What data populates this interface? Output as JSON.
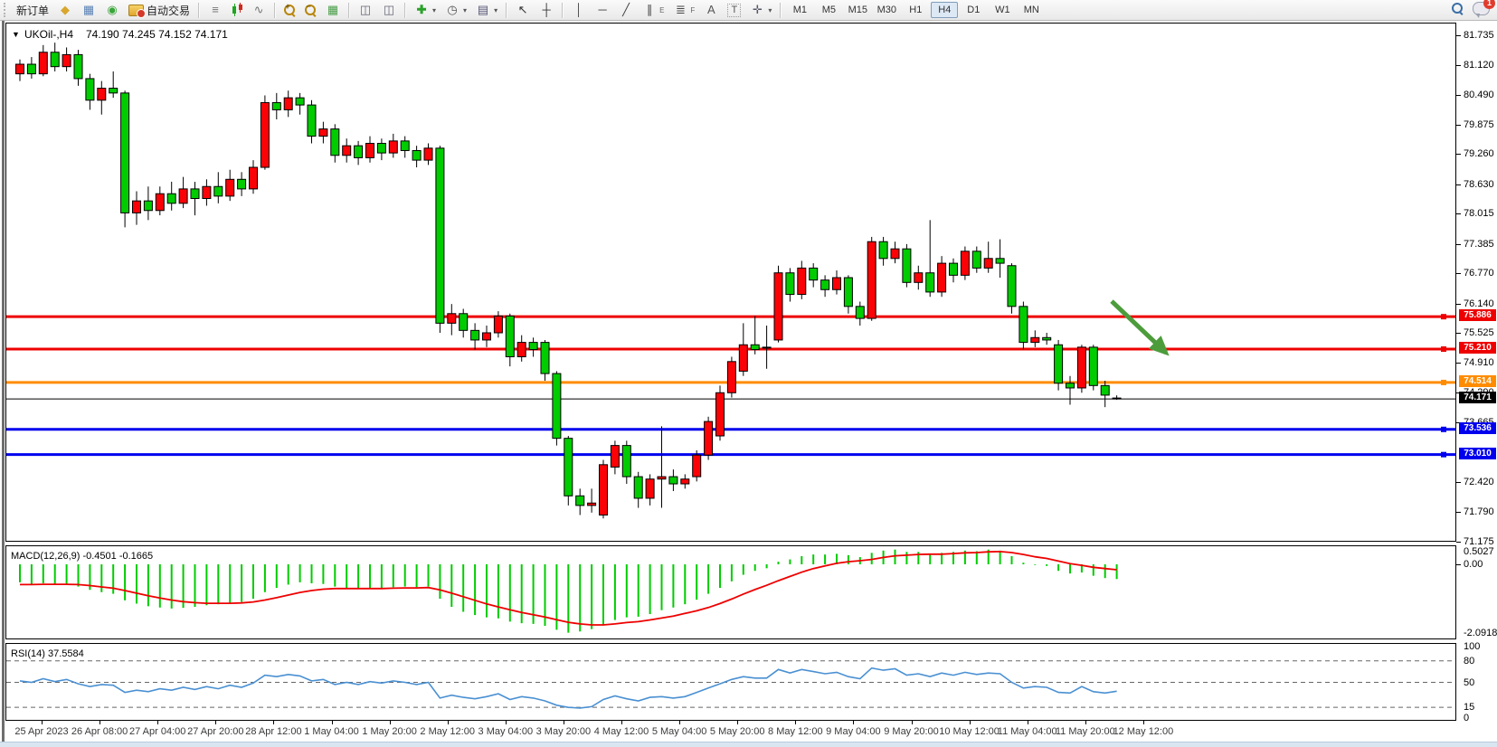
{
  "toolbar": {
    "new_order_label": "新订单",
    "autotrade_label": "自动交易",
    "timeframes": [
      "M1",
      "M5",
      "M15",
      "M30",
      "H1",
      "H4",
      "D1",
      "W1",
      "MN"
    ],
    "active_timeframe": "H4",
    "notification_count": "1",
    "text_tool_label": "A",
    "label_tool_label": "T",
    "channel_tool_label": "E",
    "fibo_tool_label": "F"
  },
  "icons": {
    "collapse": "▼",
    "gold_stack": "◆",
    "charts_window": "▦",
    "signal": "◉",
    "bar_chart": "≡",
    "line_chart": "∿",
    "tile_windows": "▦",
    "arrange_a": "◫",
    "arrange_b": "◫",
    "indicators_plus": "✚",
    "clock": "◷",
    "template": "▤",
    "cursor": "↖",
    "crosshair": "┼",
    "vline": "│",
    "hline": "─",
    "trendline": "╱",
    "channel": "∥",
    "fibo": "≣",
    "arrows_tool": "✛",
    "dropdown": "▾"
  },
  "chart": {
    "title_symbol": "UKOil-,H4",
    "title_ohlc": "74.190 74.245 74.152 74.171",
    "open": "74.190",
    "high": "74.245",
    "low": "74.152",
    "close": "74.171",
    "price_axis_labels": [
      "81.735",
      "81.120",
      "80.490",
      "79.875",
      "79.260",
      "78.630",
      "78.015",
      "77.385",
      "76.770",
      "76.140",
      "75.525",
      "74.910",
      "74.290",
      "73.665",
      "72.420",
      "71.790",
      "71.175"
    ],
    "levels": [
      {
        "price": 75.886,
        "color": "#ee0000",
        "width": 3,
        "label": "75.886"
      },
      {
        "price": 75.21,
        "color": "#ee0000",
        "width": 3,
        "label": "75.210"
      },
      {
        "price": 74.514,
        "color": "#ff8c00",
        "width": 3,
        "label": "74.514"
      },
      {
        "price": 73.536,
        "color": "#0000ee",
        "width": 3,
        "label": "73.536"
      },
      {
        "price": 73.01,
        "color": "#0000ee",
        "width": 3,
        "label": "73.010"
      },
      {
        "price": 74.171,
        "color": "#000000",
        "width": 1,
        "label": "74.171",
        "bid_line": true
      }
    ],
    "time_labels": [
      "25 Apr 2023",
      "26 Apr 08:00",
      "27 Apr 04:00",
      "27 Apr 20:00",
      "28 Apr 12:00",
      "1 May 04:00",
      "1 May 20:00",
      "2 May 12:00",
      "3 May 04:00",
      "3 May 20:00",
      "4 May 12:00",
      "5 May 04:00",
      "5 May 20:00",
      "8 May 12:00",
      "9 May 04:00",
      "9 May 20:00",
      "10 May 12:00",
      "11 May 04:00",
      "11 May 20:00",
      "12 May 12:00"
    ],
    "colors": {
      "bull": "#fb0207",
      "bear": "#00cc00",
      "outline": "#000000",
      "macd_hist": "#00cc00",
      "macd_signal": "#ee0000",
      "rsi_line": "#4a90d2",
      "arrow": "#4c9c3c",
      "rsi_level_dash": "#666666"
    }
  },
  "annotation_arrow": {
    "direction": "down-right",
    "color": "#4c9c3c"
  },
  "chart_data": {
    "type": "candlestick",
    "symbol": "UKOil-",
    "period": "H4",
    "price_range_visible": [
      71.175,
      81.735
    ],
    "candles_ohlc": [
      [
        80.95,
        81.25,
        80.8,
        81.15
      ],
      [
        81.15,
        81.3,
        80.85,
        80.95
      ],
      [
        80.95,
        81.55,
        80.9,
        81.4
      ],
      [
        81.4,
        81.6,
        81.0,
        81.1
      ],
      [
        81.1,
        81.5,
        81.0,
        81.35
      ],
      [
        81.35,
        81.45,
        80.7,
        80.85
      ],
      [
        80.85,
        80.95,
        80.2,
        80.4
      ],
      [
        80.4,
        80.8,
        80.1,
        80.65
      ],
      [
        80.65,
        81.0,
        80.45,
        80.55
      ],
      [
        80.55,
        80.6,
        77.75,
        78.05
      ],
      [
        78.05,
        78.5,
        77.8,
        78.3
      ],
      [
        78.3,
        78.6,
        77.9,
        78.1
      ],
      [
        78.1,
        78.6,
        78.0,
        78.45
      ],
      [
        78.45,
        78.7,
        78.1,
        78.25
      ],
      [
        78.25,
        78.8,
        78.15,
        78.55
      ],
      [
        78.55,
        78.7,
        78.0,
        78.35
      ],
      [
        78.35,
        78.75,
        78.2,
        78.6
      ],
      [
        78.6,
        78.9,
        78.25,
        78.4
      ],
      [
        78.4,
        78.95,
        78.3,
        78.75
      ],
      [
        78.75,
        78.9,
        78.4,
        78.55
      ],
      [
        78.55,
        79.15,
        78.45,
        79.0
      ],
      [
        79.0,
        80.5,
        78.95,
        80.35
      ],
      [
        80.35,
        80.55,
        80.0,
        80.2
      ],
      [
        80.2,
        80.6,
        80.05,
        80.45
      ],
      [
        80.45,
        80.55,
        80.1,
        80.3
      ],
      [
        80.3,
        80.4,
        79.5,
        79.65
      ],
      [
        79.65,
        79.95,
        79.5,
        79.8
      ],
      [
        79.8,
        79.9,
        79.1,
        79.25
      ],
      [
        79.25,
        79.6,
        79.1,
        79.45
      ],
      [
        79.45,
        79.55,
        79.05,
        79.2
      ],
      [
        79.2,
        79.65,
        79.1,
        79.5
      ],
      [
        79.5,
        79.6,
        79.15,
        79.3
      ],
      [
        79.3,
        79.7,
        79.2,
        79.55
      ],
      [
        79.55,
        79.65,
        79.2,
        79.35
      ],
      [
        79.35,
        79.45,
        79.0,
        79.15
      ],
      [
        79.15,
        79.5,
        79.05,
        79.4
      ],
      [
        79.4,
        79.45,
        75.55,
        75.75
      ],
      [
        75.75,
        76.15,
        75.5,
        75.95
      ],
      [
        75.95,
        76.05,
        75.45,
        75.6
      ],
      [
        75.6,
        75.75,
        75.2,
        75.4
      ],
      [
        75.4,
        75.7,
        75.25,
        75.55
      ],
      [
        75.55,
        76.0,
        75.45,
        75.9
      ],
      [
        75.9,
        75.95,
        74.85,
        75.05
      ],
      [
        75.05,
        75.5,
        74.95,
        75.35
      ],
      [
        75.35,
        75.45,
        75.05,
        75.2
      ],
      [
        75.35,
        75.4,
        74.55,
        74.7
      ],
      [
        74.7,
        74.75,
        73.2,
        73.35
      ],
      [
        73.35,
        73.4,
        71.95,
        72.15
      ],
      [
        72.15,
        72.3,
        71.75,
        71.95
      ],
      [
        71.95,
        72.3,
        71.8,
        72.0
      ],
      [
        71.75,
        72.9,
        71.68,
        72.8
      ],
      [
        72.75,
        73.3,
        72.6,
        73.2
      ],
      [
        73.2,
        73.3,
        72.4,
        72.55
      ],
      [
        72.55,
        72.65,
        71.9,
        72.1
      ],
      [
        72.1,
        72.6,
        71.95,
        72.5
      ],
      [
        72.5,
        73.6,
        71.9,
        72.55
      ],
      [
        72.55,
        72.7,
        72.25,
        72.4
      ],
      [
        72.4,
        72.6,
        72.3,
        72.5
      ],
      [
        72.55,
        73.1,
        72.45,
        73.0
      ],
      [
        73.0,
        73.8,
        72.9,
        73.7
      ],
      [
        73.4,
        74.45,
        73.3,
        74.3
      ],
      [
        74.3,
        75.05,
        74.2,
        74.95
      ],
      [
        74.75,
        75.75,
        74.65,
        75.3
      ],
      [
        75.3,
        75.9,
        75.1,
        75.2
      ],
      [
        75.25,
        75.7,
        74.8,
        75.25
      ],
      [
        75.4,
        76.95,
        75.35,
        76.8
      ],
      [
        76.8,
        76.9,
        76.2,
        76.35
      ],
      [
        76.35,
        77.05,
        76.25,
        76.9
      ],
      [
        76.9,
        77.0,
        76.5,
        76.65
      ],
      [
        76.65,
        76.75,
        76.3,
        76.45
      ],
      [
        76.45,
        76.85,
        76.35,
        76.7
      ],
      [
        76.7,
        76.75,
        75.95,
        76.1
      ],
      [
        76.1,
        76.2,
        75.7,
        75.85
      ],
      [
        75.85,
        77.55,
        75.8,
        77.45
      ],
      [
        77.45,
        77.55,
        76.95,
        77.1
      ],
      [
        77.1,
        77.45,
        77.0,
        77.3
      ],
      [
        77.3,
        77.4,
        76.5,
        76.6
      ],
      [
        76.6,
        76.95,
        76.45,
        76.8
      ],
      [
        76.8,
        77.9,
        76.3,
        76.4
      ],
      [
        76.4,
        77.15,
        76.3,
        77.0
      ],
      [
        77.0,
        77.1,
        76.6,
        76.75
      ],
      [
        76.75,
        77.35,
        76.65,
        77.25
      ],
      [
        77.25,
        77.35,
        76.8,
        76.9
      ],
      [
        76.9,
        77.45,
        76.8,
        77.1
      ],
      [
        77.1,
        77.5,
        76.7,
        77.0
      ],
      [
        76.95,
        77.0,
        75.95,
        76.1
      ],
      [
        76.1,
        76.2,
        75.2,
        75.35
      ],
      [
        75.35,
        75.6,
        75.25,
        75.45
      ],
      [
        75.45,
        75.55,
        75.3,
        75.4
      ],
      [
        75.3,
        75.4,
        74.35,
        74.5
      ],
      [
        74.5,
        74.65,
        74.05,
        74.4
      ],
      [
        74.4,
        75.3,
        74.3,
        75.25
      ],
      [
        75.25,
        75.3,
        74.35,
        74.45
      ],
      [
        74.45,
        74.55,
        74.0,
        74.25
      ],
      [
        74.19,
        74.245,
        74.152,
        74.171
      ]
    ],
    "macd": {
      "label_full": "MACD(12,26,9) -0.4501 -0.1665",
      "current_macd": -0.4501,
      "current_signal": -0.1665,
      "axis_labels": [
        "0.5027",
        "0.00",
        "-2.0918"
      ],
      "scale_max": 0.5027,
      "scale_min": -2.0918,
      "histogram": [
        -0.55,
        -0.6,
        -0.58,
        -0.62,
        -0.6,
        -0.68,
        -0.78,
        -0.85,
        -0.9,
        -1.1,
        -1.2,
        -1.28,
        -1.32,
        -1.35,
        -1.33,
        -1.3,
        -1.25,
        -1.22,
        -1.18,
        -1.15,
        -1.05,
        -0.85,
        -0.72,
        -0.62,
        -0.55,
        -0.58,
        -0.6,
        -0.68,
        -0.72,
        -0.75,
        -0.74,
        -0.73,
        -0.7,
        -0.68,
        -0.7,
        -0.68,
        -1.05,
        -1.3,
        -1.45,
        -1.55,
        -1.62,
        -1.65,
        -1.75,
        -1.8,
        -1.82,
        -1.88,
        -2.0,
        -2.09,
        -2.05,
        -1.98,
        -1.85,
        -1.7,
        -1.62,
        -1.6,
        -1.52,
        -1.4,
        -1.32,
        -1.22,
        -1.08,
        -0.9,
        -0.72,
        -0.52,
        -0.32,
        -0.2,
        -0.12,
        0.08,
        0.15,
        0.25,
        0.3,
        0.3,
        0.32,
        0.28,
        0.22,
        0.35,
        0.42,
        0.45,
        0.38,
        0.38,
        0.32,
        0.35,
        0.38,
        0.42,
        0.4,
        0.45,
        0.42,
        0.25,
        0.05,
        -0.02,
        -0.05,
        -0.2,
        -0.28,
        -0.25,
        -0.35,
        -0.42,
        -0.4501
      ],
      "signal": [
        -0.62,
        -0.62,
        -0.61,
        -0.61,
        -0.61,
        -0.62,
        -0.65,
        -0.69,
        -0.73,
        -0.8,
        -0.88,
        -0.96,
        -1.03,
        -1.09,
        -1.14,
        -1.17,
        -1.19,
        -1.19,
        -1.19,
        -1.18,
        -1.15,
        -1.09,
        -1.02,
        -0.94,
        -0.86,
        -0.8,
        -0.76,
        -0.74,
        -0.74,
        -0.74,
        -0.74,
        -0.74,
        -0.73,
        -0.72,
        -0.72,
        -0.71,
        -0.78,
        -0.88,
        -0.99,
        -1.1,
        -1.21,
        -1.3,
        -1.39,
        -1.47,
        -1.54,
        -1.61,
        -1.69,
        -1.77,
        -1.82,
        -1.85,
        -1.85,
        -1.82,
        -1.78,
        -1.75,
        -1.7,
        -1.64,
        -1.58,
        -1.5,
        -1.42,
        -1.32,
        -1.2,
        -1.06,
        -0.91,
        -0.77,
        -0.64,
        -0.5,
        -0.37,
        -0.24,
        -0.13,
        -0.05,
        0.03,
        0.08,
        0.11,
        0.15,
        0.21,
        0.26,
        0.28,
        0.3,
        0.31,
        0.31,
        0.33,
        0.35,
        0.36,
        0.38,
        0.39,
        0.36,
        0.3,
        0.23,
        0.18,
        0.1,
        0.02,
        -0.03,
        -0.09,
        -0.13,
        -0.1665
      ]
    },
    "rsi": {
      "label_full": "RSI(14) 37.5584",
      "current": 37.5584,
      "levels": [
        80,
        50,
        15
      ],
      "axis_labels": [
        "100",
        "80",
        "50",
        "15",
        "0"
      ],
      "series": [
        52,
        50,
        55,
        51,
        54,
        48,
        44,
        47,
        46,
        36,
        39,
        37,
        41,
        39,
        43,
        40,
        44,
        41,
        46,
        43,
        49,
        60,
        58,
        61,
        59,
        52,
        54,
        47,
        50,
        47,
        51,
        49,
        52,
        50,
        47,
        50,
        28,
        32,
        29,
        27,
        30,
        34,
        26,
        30,
        28,
        24,
        18,
        15,
        14,
        16,
        26,
        31,
        27,
        24,
        29,
        30,
        28,
        30,
        36,
        42,
        48,
        54,
        58,
        56,
        56,
        68,
        63,
        68,
        65,
        62,
        64,
        58,
        55,
        70,
        67,
        69,
        60,
        62,
        58,
        63,
        60,
        64,
        61,
        63,
        62,
        50,
        42,
        44,
        43,
        36,
        35,
        44,
        37,
        35,
        37.56
      ]
    }
  }
}
